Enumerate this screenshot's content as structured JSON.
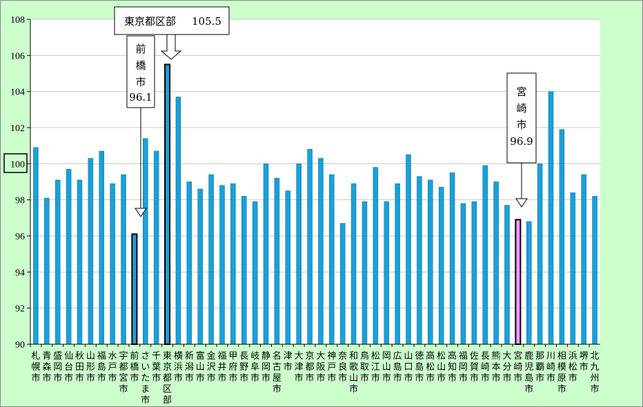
{
  "chart_data": {
    "type": "bar",
    "ylim": [
      90,
      108
    ],
    "yticks": [
      "90",
      "92",
      "94",
      "96",
      "98",
      "100",
      "102",
      "104",
      "106",
      "108"
    ],
    "grid": true,
    "colors": {
      "bar": "#1aa0d8",
      "highlight": "#ff99ff",
      "background": "#ccffcc"
    },
    "categories": [
      "札幌市",
      "青森市",
      "盛岡市",
      "仙台市",
      "秋田市",
      "山形市",
      "福島市",
      "水戸市",
      "宇都宮市",
      "前橋市",
      "さいたま市",
      "千葉市",
      "東京都区部",
      "横浜市",
      "新潟市",
      "富山市",
      "金沢市",
      "福井市",
      "甲府市",
      "長野市",
      "岐阜市",
      "静岡市",
      "名古屋市",
      "津市",
      "大津市",
      "京都市",
      "大阪市",
      "神戸市",
      "奈良市",
      "和歌山市",
      "鳥取市",
      "松江市",
      "岡山市",
      "広島市",
      "山口市",
      "徳島市",
      "高松市",
      "松山市",
      "高知市",
      "福岡市",
      "佐賀市",
      "長崎市",
      "熊本市",
      "大分市",
      "宮崎市",
      "鹿児島市",
      "那覇市",
      "川崎市",
      "相模原市",
      "浜松市",
      "堺市",
      "北九州市"
    ],
    "values": [
      100.9,
      98.1,
      99.1,
      99.7,
      99.1,
      100.3,
      100.7,
      98.9,
      99.4,
      96.1,
      101.4,
      100.7,
      105.5,
      103.7,
      99.0,
      98.6,
      99.4,
      98.8,
      98.9,
      98.2,
      97.9,
      100.0,
      99.2,
      98.5,
      100.0,
      100.8,
      100.3,
      99.4,
      96.7,
      98.9,
      97.9,
      99.8,
      97.9,
      98.9,
      100.5,
      99.3,
      99.1,
      98.7,
      99.5,
      97.8,
      97.9,
      99.9,
      99.0,
      97.7,
      96.9,
      96.8,
      100.0,
      104.0,
      101.9,
      98.4,
      99.4,
      98.2
    ],
    "callouts": [
      {
        "label": "東京都区部",
        "value_text": "105.5",
        "index": 12
      },
      {
        "label": "前橋市",
        "value_text": "96.1",
        "index": 9
      },
      {
        "label": "宮崎市",
        "value_text": "96.9",
        "index": 44
      }
    ]
  }
}
